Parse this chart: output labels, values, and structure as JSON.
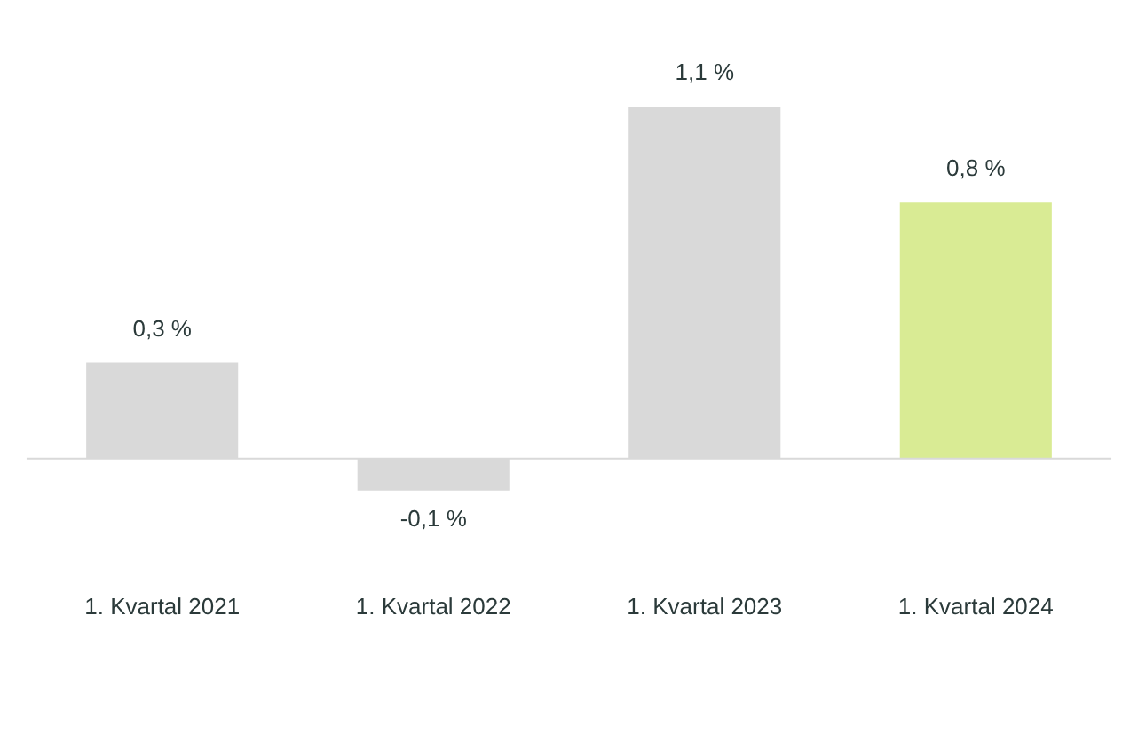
{
  "chart_data": {
    "type": "bar",
    "categories": [
      "1. Kvartal 2021",
      "1. Kvartal 2022",
      "1. Kvartal 2023",
      "1. Kvartal 2024"
    ],
    "values": [
      0.3,
      -0.1,
      1.1,
      0.8
    ],
    "colors": [
      "#d9d9d9",
      "#d9d9d9",
      "#d9d9d9",
      "#d9eb94"
    ],
    "value_labels": [
      "0,3 %",
      "-0,1 %",
      "1,1 %",
      "0,8 %"
    ],
    "grid": false,
    "legend": false
  }
}
